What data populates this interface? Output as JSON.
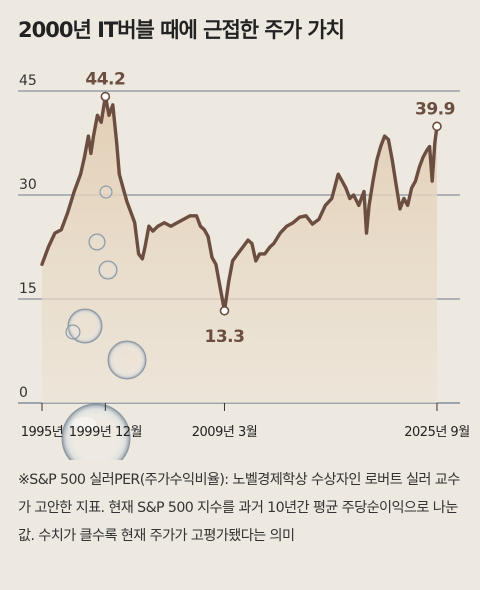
{
  "title": "2000년 IT버블 때에 근접한 주가 가치",
  "note": "※S&P 500 실러PER(주가수익비율): 노벨경제학상 수상자인 로버트 실러 교수가 고안한 지표. 현재 S&P 500 지수를 과거 10년간 평균 주당순이익으로 나눈 값. 수치가 클수록 현재 주가가 고평가됐다는 의미",
  "colors": {
    "line": "#6b4e3f",
    "area": "#e7d6c0",
    "grid": "#5a6a80",
    "background": "#ede9e0"
  },
  "chart_data": {
    "type": "line",
    "title": "2000년 IT버블 때에 근접한 주가 가치",
    "xlabel": "",
    "ylabel": "",
    "ylim": [
      0,
      45
    ],
    "xlim": [
      1995.0,
      2025.75
    ],
    "yticks": [
      0,
      15,
      30,
      45
    ],
    "xticks": [
      {
        "x": 1995.0,
        "label": "1995년"
      },
      {
        "x": 1999.92,
        "label": "1999년 12월"
      },
      {
        "x": 2009.17,
        "label": "2009년 3월"
      },
      {
        "x": 2025.67,
        "label": "2025년 9월"
      }
    ],
    "grid": "horizontal",
    "series": [
      {
        "x": [
          1995.0,
          1995.5,
          1996.0,
          1996.5,
          1997.0,
          1997.5,
          1998.0,
          1998.3,
          1998.6,
          1998.8,
          1999.0,
          1999.3,
          1999.6,
          1999.92,
          2000.2,
          2000.5,
          2000.8,
          2001.0,
          2001.3,
          2001.6,
          2001.9,
          2002.2,
          2002.5,
          2002.8,
          2003.0,
          2003.3,
          2003.6,
          2004.0,
          2004.5,
          2005.0,
          2005.5,
          2006.0,
          2006.5,
          2007.0,
          2007.3,
          2007.6,
          2007.9,
          2008.2,
          2008.5,
          2008.8,
          2009.0,
          2009.17,
          2009.5,
          2009.8,
          2010.2,
          2010.6,
          2011.0,
          2011.3,
          2011.6,
          2011.9,
          2012.3,
          2012.7,
          2013.0,
          2013.5,
          2014.0,
          2014.5,
          2015.0,
          2015.5,
          2016.0,
          2016.5,
          2017.0,
          2017.5,
          2018.0,
          2018.3,
          2018.6,
          2018.9,
          2019.2,
          2019.6,
          2020.0,
          2020.2,
          2020.4,
          2020.7,
          2021.0,
          2021.3,
          2021.6,
          2021.9,
          2022.2,
          2022.5,
          2022.8,
          2023.1,
          2023.4,
          2023.7,
          2024.0,
          2024.3,
          2024.6,
          2024.9,
          2025.1,
          2025.3,
          2025.5,
          2025.67
        ],
        "values": [
          20,
          22.5,
          24.5,
          25,
          27.5,
          30.5,
          33,
          35.5,
          38.5,
          36,
          38.5,
          41.5,
          40.5,
          44.2,
          41.5,
          43,
          37.5,
          33,
          31,
          29,
          27.5,
          26,
          21.5,
          20.8,
          22.5,
          25.5,
          24.8,
          25.5,
          26,
          25.5,
          26,
          26.5,
          27,
          27,
          25.5,
          25,
          24,
          21,
          20,
          17,
          15,
          13.3,
          17.5,
          20.5,
          21.5,
          22.5,
          23.5,
          23,
          20.5,
          21.5,
          21.5,
          22.5,
          23,
          24.5,
          25.5,
          26,
          26.8,
          27,
          25.8,
          26.5,
          28.5,
          29.5,
          33,
          32,
          31,
          29.5,
          30,
          28.5,
          30.5,
          24.5,
          28.5,
          32,
          35,
          37,
          38.5,
          38,
          35,
          31.5,
          28,
          29.5,
          28.5,
          31,
          32,
          34,
          35.5,
          36.5,
          37,
          32,
          37.5,
          39.9
        ]
      }
    ],
    "annotations": [
      {
        "x": 1999.92,
        "y": 44.2,
        "text": "44.2"
      },
      {
        "x": 2009.17,
        "y": 13.3,
        "text": "13.3"
      },
      {
        "x": 2025.67,
        "y": 39.9,
        "text": "39.9"
      }
    ]
  }
}
